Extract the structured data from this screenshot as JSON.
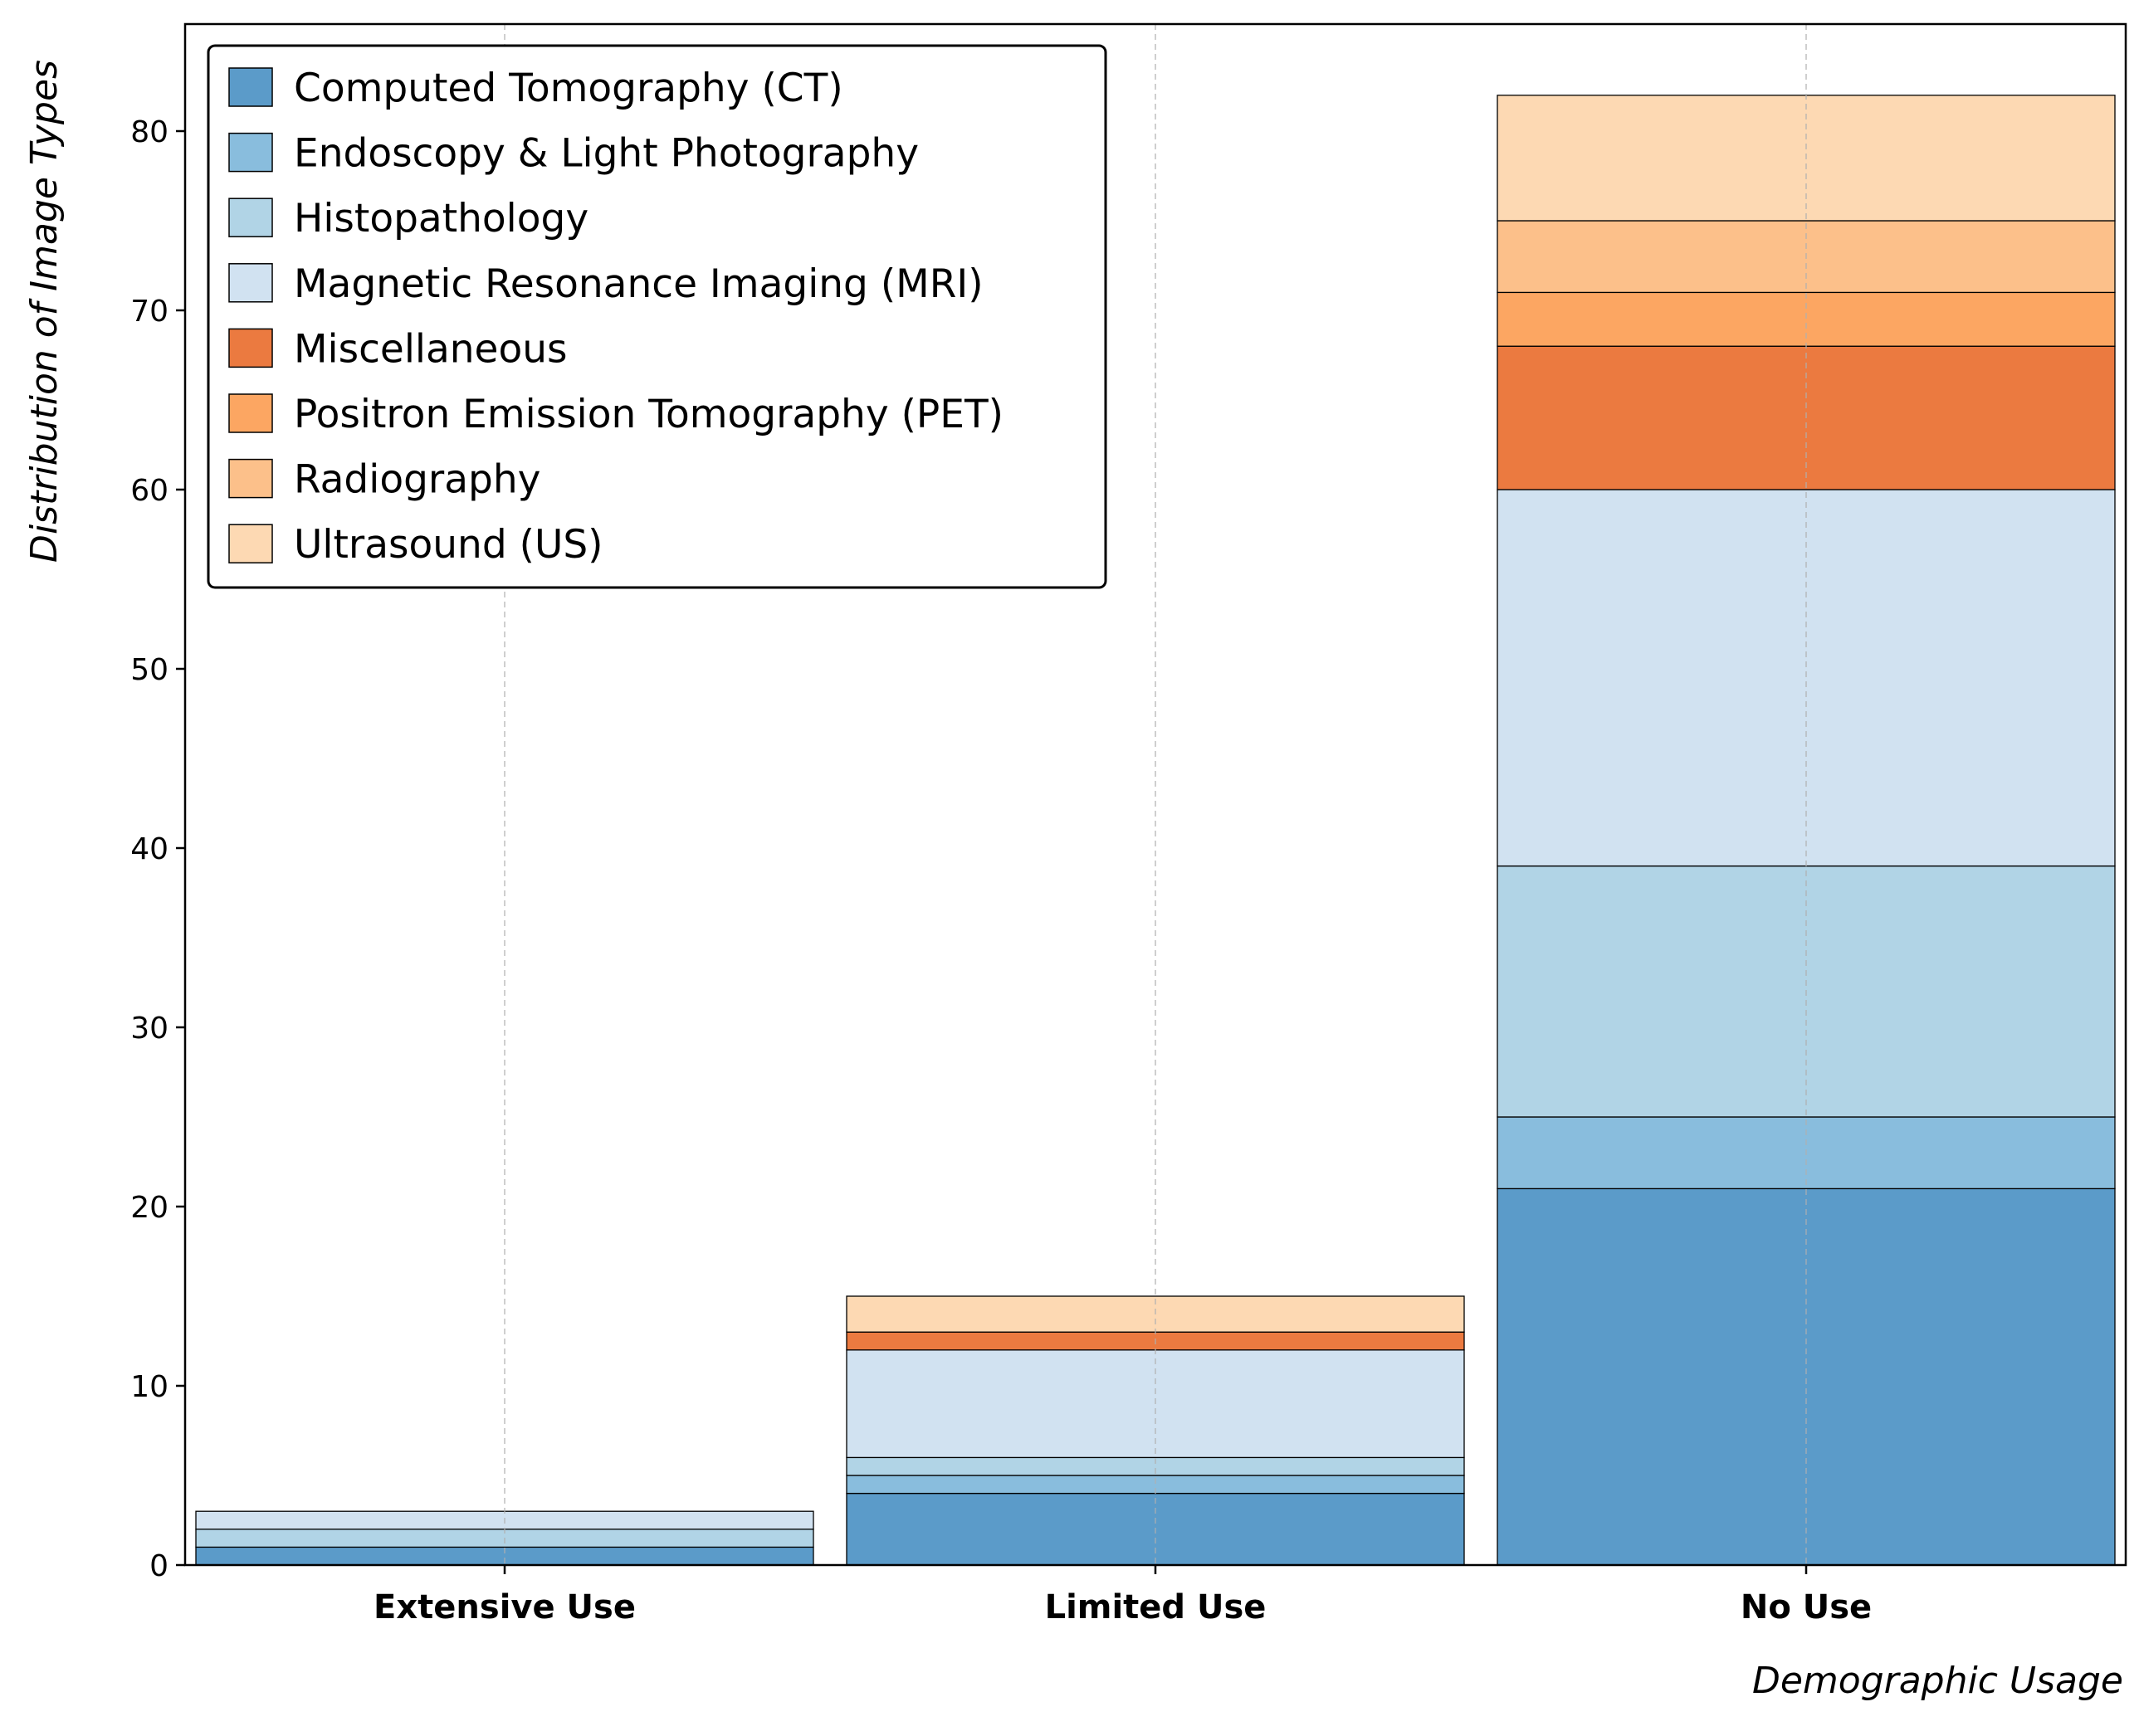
{
  "chart_data": {
    "type": "bar",
    "stacked": true,
    "title": "",
    "xlabel": "Demographic Usage",
    "ylabel": "Distribution of Image Types",
    "categories": [
      "Extensive Use",
      "Limited Use",
      "No Use"
    ],
    "ylim": [
      0,
      86
    ],
    "yticks": [
      0,
      10,
      20,
      30,
      40,
      50,
      60,
      70,
      80
    ],
    "grid": "vertical dashed",
    "legend_position": "top-left",
    "series": [
      {
        "name": "Computed Tomography (CT)",
        "color": "#5b9bc9",
        "values": [
          1,
          4,
          21
        ]
      },
      {
        "name": "Endoscopy & Light Photography",
        "color": "#89bddd",
        "values": [
          0,
          1,
          4
        ]
      },
      {
        "name": "Histopathology",
        "color": "#b1d4e6",
        "values": [
          1,
          1,
          14
        ]
      },
      {
        "name": "Magnetic Resonance Imaging (MRI)",
        "color": "#d1e2f1",
        "values": [
          1,
          6,
          21
        ]
      },
      {
        "name": "Miscellaneous",
        "color": "#eb7a40",
        "values": [
          0,
          1,
          8
        ]
      },
      {
        "name": "Positron Emission Tomography (PET)",
        "color": "#fca662",
        "values": [
          0,
          0,
          3
        ]
      },
      {
        "name": "Radiography",
        "color": "#fcc08a",
        "values": [
          0,
          0,
          4
        ]
      },
      {
        "name": "Ultrasound (US)",
        "color": "#fdd9b3",
        "values": [
          0,
          2,
          7
        ]
      }
    ]
  }
}
